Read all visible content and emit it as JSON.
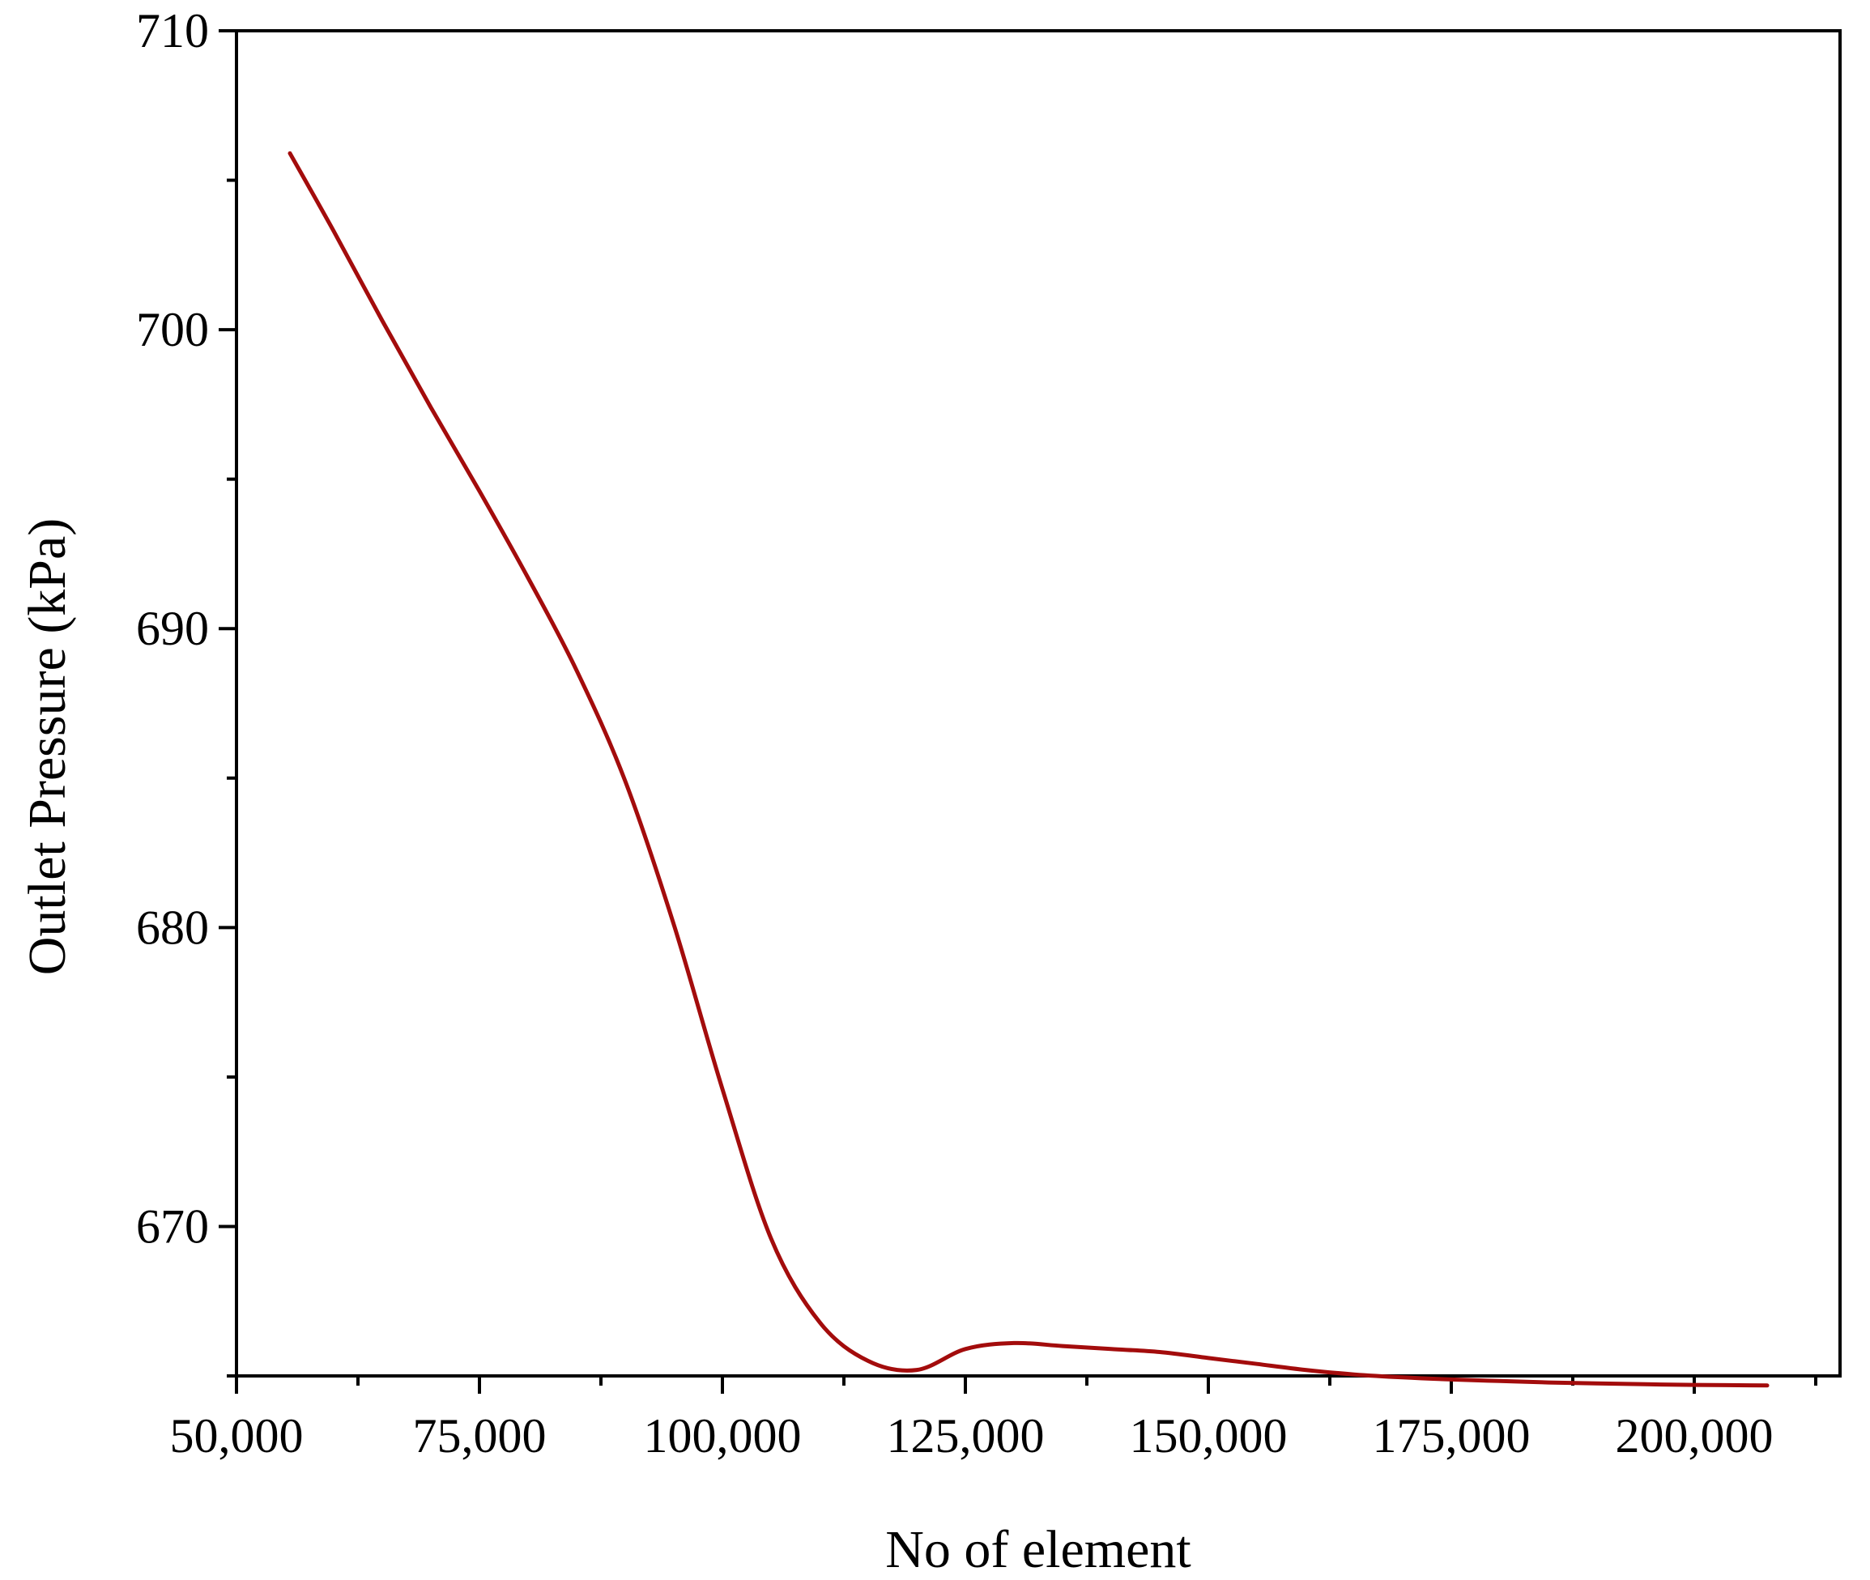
{
  "chart_data": {
    "type": "line",
    "xlabel": "No of element",
    "ylabel": "Outlet Pressure (kPa)",
    "xlim": [
      50000,
      215000
    ],
    "ylim": [
      665,
      710
    ],
    "x_ticks": [
      50000,
      75000,
      100000,
      125000,
      150000,
      175000,
      200000
    ],
    "x_tick_labels": [
      "50,000",
      "75,000",
      "100,000",
      "125,000",
      "150,000",
      "175,000",
      "200,000"
    ],
    "y_ticks": [
      670,
      680,
      690,
      700,
      710
    ],
    "y_tick_labels": [
      "670",
      "680",
      "690",
      "700",
      "710"
    ],
    "grid": false,
    "series": [
      {
        "color": "#a30c0c",
        "x": [
          55500,
          60000,
          65000,
          70000,
          75000,
          80000,
          85000,
          90000,
          95000,
          100000,
          105000,
          110000,
          115000,
          120000,
          125000,
          130000,
          135000,
          140000,
          145000,
          150000,
          155000,
          160000,
          165000,
          170000,
          175000,
          180000,
          185000,
          190000,
          195000,
          200000,
          207500
        ],
        "y": [
          705.9,
          703.3,
          700.3,
          697.4,
          694.6,
          691.7,
          688.6,
          684.9,
          680.1,
          674.6,
          669.6,
          666.8,
          665.5,
          665.2,
          665.9,
          666.1,
          666.0,
          665.9,
          665.8,
          665.6,
          665.4,
          665.2,
          665.05,
          664.95,
          664.88,
          664.83,
          664.78,
          664.75,
          664.72,
          664.7,
          664.68
        ]
      }
    ]
  }
}
